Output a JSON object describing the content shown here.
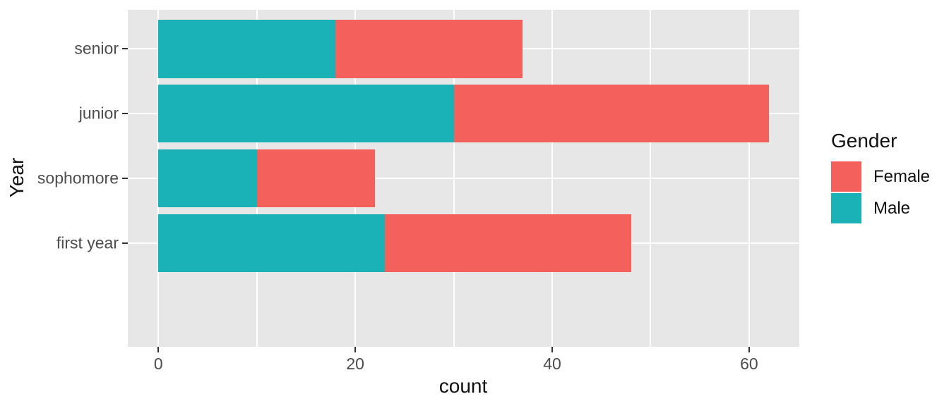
{
  "chart_data": {
    "type": "bar",
    "orientation": "horizontal",
    "stacked": true,
    "title": "",
    "xlabel": "count",
    "ylabel": "Year",
    "categories": [
      "senior",
      "junior",
      "sophomore",
      "first year"
    ],
    "series": [
      {
        "name": "Male",
        "color": "#1ab2b6",
        "values": [
          18,
          30,
          10,
          23
        ]
      },
      {
        "name": "Female",
        "color": "#f4605c",
        "values": [
          19,
          32,
          12,
          25
        ]
      }
    ],
    "x_ticks": [
      0,
      20,
      40,
      60
    ],
    "x_minor_gridlines": [
      10,
      30,
      50
    ],
    "xlim": [
      -3.1,
      65.1
    ],
    "bar_width_fraction": 0.9,
    "grid": true,
    "legend": {
      "title": "Gender",
      "position": "right",
      "entries": [
        {
          "label": "Female",
          "color": "#f4605c"
        },
        {
          "label": "Male",
          "color": "#1ab2b6"
        }
      ]
    },
    "colors": {
      "panel_background": "#e7e7e7",
      "gridline": "#ffffff",
      "axis_text": "#4d4d4d",
      "axis_title": "#111111",
      "tick_mark": "#333333"
    }
  }
}
